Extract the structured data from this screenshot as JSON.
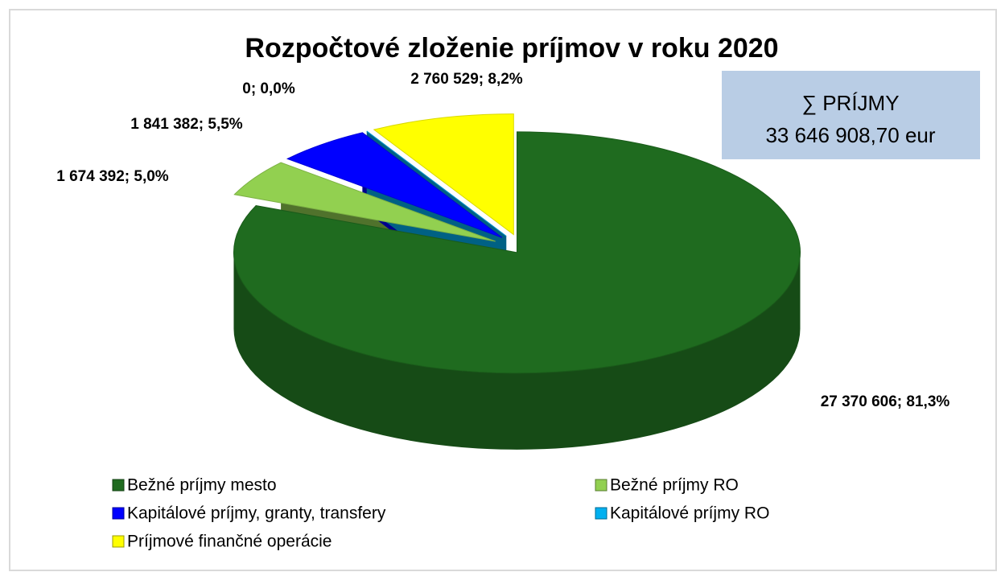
{
  "chart_data": {
    "type": "pie3d",
    "title": "Rozpočtové zloženie príjmov v roku 2020",
    "categories": [
      "Bežné príjmy mesto",
      "Bežné príjmy RO",
      "Kapitálové príjmy, granty, transfery",
      "Kapitálové príjmy RO",
      "Príjmové finančné operácie"
    ],
    "series": [
      {
        "colors": [
          "#1f6b1f",
          "#92d050",
          "#0000ff",
          "#00b0f0",
          "#ffff00"
        ],
        "values": [
          27370606,
          1674392,
          1841382,
          0,
          2760529
        ],
        "value_labels": [
          "27 370 606; 81,3%",
          "1 674 392; 5,0%",
          "1 841 382; 5,5%",
          "0; 0,0%",
          "2 760 529; 8,2%"
        ]
      }
    ],
    "annotations": [
      "∑ PRÍJMY",
      "33 646 908,70 eur"
    ],
    "legend": "bottom"
  }
}
